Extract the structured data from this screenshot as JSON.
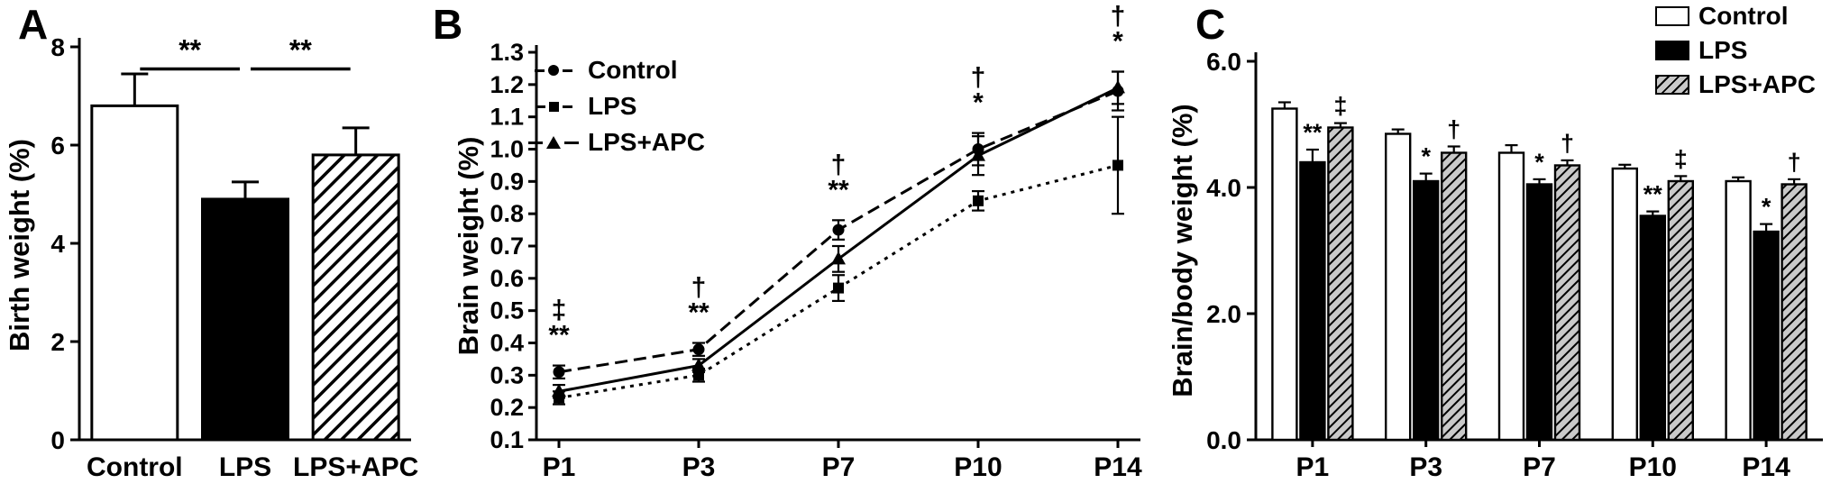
{
  "figure": {
    "panels": [
      {
        "id": "A",
        "label": "A"
      },
      {
        "id": "B",
        "label": "B"
      },
      {
        "id": "C",
        "label": "C"
      }
    ]
  },
  "colors": {
    "axis": "#000000",
    "control_fill": "#ffffff",
    "lps_fill": "#000000",
    "apc_hatch_bg_a": "#ffffff",
    "apc_hatch_bg_c": "#c9c9c9"
  },
  "chart_data": [
    {
      "type": "bar",
      "panel": "A",
      "ylabel": "Birth weight (%)",
      "ylim": [
        0,
        8
      ],
      "yticks": [
        "0",
        "2",
        "4",
        "6",
        "8"
      ],
      "categories": [
        "Control",
        "LPS",
        "LPS+APC"
      ],
      "values": [
        6.8,
        4.9,
        5.8
      ],
      "errors": [
        0.65,
        0.35,
        0.55
      ],
      "bar_styles": [
        "white",
        "black",
        "hatched-white"
      ],
      "significance": [
        {
          "from": 0,
          "to": 1,
          "label": "**",
          "y": 7.55
        },
        {
          "from": 1,
          "to": 2,
          "label": "**",
          "y": 7.55
        }
      ]
    },
    {
      "type": "line",
      "panel": "B",
      "ylabel": "Brain weight (%)",
      "ylim": [
        0.1,
        1.3
      ],
      "ytick_step": 0.1,
      "categories": [
        "P1",
        "P3",
        "P7",
        "P10",
        "P14"
      ],
      "series": [
        {
          "name": "Control",
          "marker": "circle",
          "line": "dashed",
          "values": [
            0.31,
            0.38,
            0.75,
            1.0,
            1.18
          ],
          "errors": [
            0.02,
            0.02,
            0.03,
            0.05,
            0.06
          ]
        },
        {
          "name": "LPS",
          "marker": "square",
          "line": "dotted",
          "values": [
            0.23,
            0.3,
            0.57,
            0.84,
            0.95
          ],
          "errors": [
            0.02,
            0.02,
            0.04,
            0.03,
            0.15
          ]
        },
        {
          "name": "LPS+APC",
          "marker": "triangle",
          "line": "solid",
          "values": [
            0.25,
            0.33,
            0.66,
            0.98,
            1.19
          ],
          "errors": [
            0.02,
            0.02,
            0.04,
            0.06,
            0.05
          ]
        }
      ],
      "annotations": [
        {
          "category": "P1",
          "labels": [
            "‡",
            "**"
          ]
        },
        {
          "category": "P3",
          "labels": [
            "†",
            "**"
          ]
        },
        {
          "category": "P7",
          "labels": [
            "†",
            "**"
          ]
        },
        {
          "category": "P10",
          "labels": [
            "†",
            "*"
          ]
        },
        {
          "category": "P14",
          "labels": [
            "†",
            "*"
          ]
        }
      ],
      "legend": [
        "Control",
        "LPS",
        "LPS+APC"
      ]
    },
    {
      "type": "grouped-bar",
      "panel": "C",
      "ylabel": "Brain/body weight (%)",
      "ylim": [
        0,
        6
      ],
      "yticks": [
        "0.0",
        "2.0",
        "4.0",
        "6.0"
      ],
      "categories": [
        "P1",
        "P3",
        "P7",
        "P10",
        "P14"
      ],
      "series": [
        {
          "name": "Control",
          "style": "white",
          "values": [
            5.25,
            4.85,
            4.55,
            4.3,
            4.1
          ],
          "errors": [
            0.1,
            0.07,
            0.12,
            0.06,
            0.06
          ],
          "annotations": [
            "",
            "",
            "",
            "",
            ""
          ]
        },
        {
          "name": "LPS",
          "style": "black",
          "values": [
            4.4,
            4.1,
            4.05,
            3.55,
            3.3
          ],
          "errors": [
            0.2,
            0.12,
            0.08,
            0.07,
            0.12
          ],
          "annotations": [
            "**",
            "*",
            "*",
            "**",
            "*"
          ]
        },
        {
          "name": "LPS+APC",
          "style": "hatched-gray",
          "values": [
            4.95,
            4.55,
            4.35,
            4.1,
            4.05
          ],
          "errors": [
            0.07,
            0.1,
            0.08,
            0.08,
            0.08
          ],
          "annotations": [
            "‡",
            "†",
            "†",
            "‡",
            "†"
          ]
        }
      ],
      "legend": [
        {
          "label": "Control",
          "style": "white"
        },
        {
          "label": "LPS",
          "style": "black"
        },
        {
          "label": "LPS+APC",
          "style": "hatched-gray"
        }
      ]
    }
  ]
}
